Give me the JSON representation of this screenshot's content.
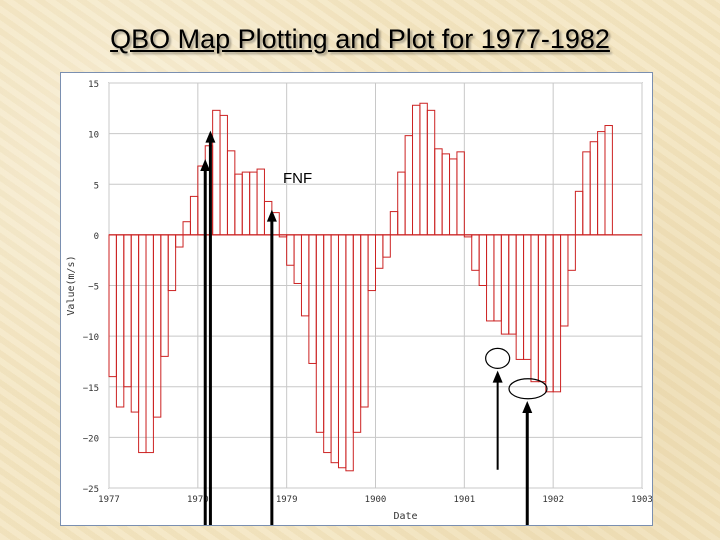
{
  "slide": {
    "title": "QBO Map Plotting and Plot for 1977-1982",
    "annotation": "FNF"
  },
  "chart_data": {
    "type": "bar",
    "title": "",
    "xlabel": "Date",
    "ylabel": "Value(m/s)",
    "ylim": [
      -25,
      15
    ],
    "yticks": [
      15,
      10,
      5,
      0,
      -5,
      -10,
      -15,
      -20,
      -25
    ],
    "xticklabels": [
      "1977",
      "1970",
      "1979",
      "1900",
      "1901",
      "1902",
      "1903"
    ],
    "grid": true,
    "bar_style": "outline",
    "bar_color": "#cc2222",
    "months_per_year": 12,
    "values": [
      -14,
      -17,
      -15,
      -17.5,
      -21.5,
      -21.5,
      -18,
      -12,
      -5.5,
      -1.2,
      1.3,
      3.8,
      6.8,
      8.8,
      12.3,
      11.8,
      8.3,
      6,
      6.2,
      6.2,
      6.5,
      3.3,
      2.2,
      -0.2,
      -3,
      -4.8,
      -8,
      -12.7,
      -19.5,
      -21.5,
      -22.5,
      -23,
      -23.3,
      -19.5,
      -17,
      -5.5,
      -3.3,
      -2.2,
      2.3,
      6.2,
      9.8,
      12.8,
      13,
      12.3,
      8.5,
      8,
      7.5,
      8.2,
      -0.2,
      -3.5,
      -5,
      -8.5,
      -8.5,
      -9.8,
      -9.8,
      -12.3,
      -12.3,
      -14.5,
      -14.5,
      -15.5,
      -15.5,
      -9,
      -3.5,
      4.3,
      8.2,
      9.2,
      10.2,
      10.8
    ],
    "markers": [
      {
        "type": "arrow",
        "x_month": 2.0,
        "from": -25,
        "to": 7.3
      },
      {
        "type": "arrow",
        "x_month": 1.0,
        "from": -25,
        "to": 10.1
      },
      {
        "type": "arrow",
        "x_month": 1.7,
        "from": -25,
        "to": 2.3
      },
      {
        "type": "arrow",
        "x_month": 4.3,
        "from": -23.2,
        "to": -13.6
      },
      {
        "type": "arrow",
        "x_month": 5.2,
        "from": -25,
        "to": -16.6
      },
      {
        "type": "ellipse",
        "x_month": 4.5,
        "y": -12.2
      },
      {
        "type": "ellipse",
        "x_month": 5.3,
        "y": -15.2
      }
    ]
  }
}
